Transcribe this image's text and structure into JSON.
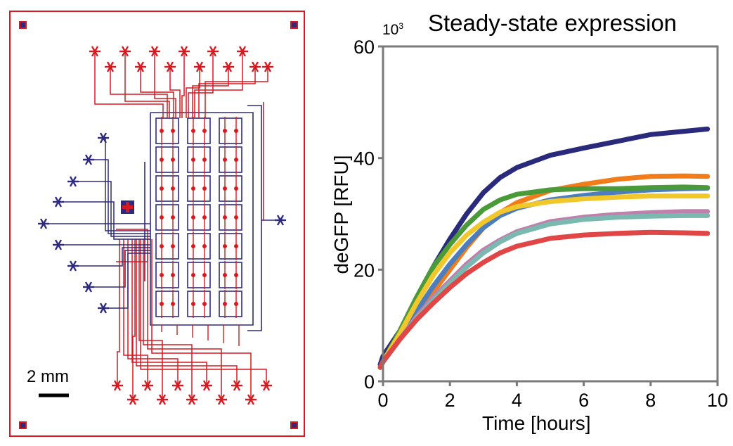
{
  "chip_figure": {
    "scale_bar_label": "2 mm",
    "colors": {
      "flow_layer": "#d71920",
      "control_layer": "#2e2a80"
    }
  },
  "chart_data": {
    "type": "line",
    "title": "Steady-state expression",
    "xlabel": "Time [hours]",
    "ylabel": "deGFP [RFU]",
    "y_multiplier": "10",
    "y_multiplier_exp": "3",
    "xlim": [
      0,
      10
    ],
    "ylim": [
      0,
      60
    ],
    "xticks": [
      0,
      2,
      4,
      6,
      8,
      10
    ],
    "yticks": [
      0,
      20,
      40,
      60
    ],
    "grid": false,
    "legend": "none",
    "series": [
      {
        "color": "#2a2a7c",
        "x": [
          -0.2,
          0,
          0.5,
          1,
          1.5,
          2,
          2.5,
          3,
          3.5,
          4,
          5,
          6,
          7,
          8,
          9,
          9.7
        ],
        "y": [
          3,
          4.5,
          9,
          15,
          20.5,
          25.5,
          30,
          33.8,
          36.5,
          38.3,
          40.5,
          41.8,
          43,
          44.2,
          44.8,
          45.2
        ]
      },
      {
        "color": "#f07d1a",
        "x": [
          -0.2,
          0,
          0.5,
          1,
          1.5,
          2,
          2.5,
          3,
          3.5,
          4,
          5,
          6,
          7,
          8,
          9,
          9.7
        ],
        "y": [
          2.5,
          3.5,
          7.5,
          11.5,
          16,
          20,
          24,
          27.5,
          30.2,
          32,
          34.2,
          35.3,
          36.2,
          36.7,
          36.8,
          36.7
        ]
      },
      {
        "color": "#4c7ebd",
        "x": [
          -0.2,
          0,
          0.5,
          1,
          1.5,
          2,
          2.5,
          3,
          3.5,
          4,
          5,
          6,
          7,
          8,
          9,
          9.7
        ],
        "y": [
          2.5,
          3.5,
          8,
          12.5,
          17,
          21,
          24.5,
          27.5,
          29.7,
          31,
          32.5,
          33.3,
          33.9,
          34.3,
          34.5,
          34.6
        ]
      },
      {
        "color": "#4a9a3a",
        "x": [
          -0.2,
          0,
          0.5,
          1,
          1.5,
          2,
          2.5,
          3,
          3.5,
          4,
          5,
          6,
          7,
          8,
          9,
          9.7
        ],
        "y": [
          2.5,
          3.5,
          9,
          15,
          20.5,
          24.5,
          28,
          30.8,
          32.5,
          33.5,
          34.3,
          34.5,
          34.5,
          34.7,
          34.8,
          34.7
        ]
      },
      {
        "color": "#f2c72a",
        "x": [
          -0.2,
          0,
          0.5,
          1,
          1.5,
          2,
          2.5,
          3,
          3.5,
          4,
          5,
          6,
          7,
          8,
          9,
          9.7
        ],
        "y": [
          2.5,
          3.5,
          8.5,
          14,
          19,
          23,
          26.2,
          28.5,
          30.3,
          31.3,
          32.2,
          32.7,
          33,
          33.2,
          33.2,
          33.2
        ]
      },
      {
        "color": "#c07fad",
        "x": [
          -0.2,
          0,
          0.5,
          1,
          1.5,
          2,
          2.5,
          3,
          3.5,
          4,
          5,
          6,
          7,
          8,
          9,
          9.7
        ],
        "y": [
          2.5,
          3.5,
          7.5,
          11.5,
          15,
          18,
          21,
          23.5,
          25.3,
          26.8,
          28.6,
          29.4,
          29.9,
          30.2,
          30.4,
          30.4
        ]
      },
      {
        "color": "#7ab9b0",
        "x": [
          -0.2,
          0,
          0.5,
          1,
          1.5,
          2,
          2.5,
          3,
          3.5,
          4,
          5,
          6,
          7,
          8,
          9,
          9.7
        ],
        "y": [
          2.5,
          3.5,
          7.5,
          11.2,
          14.5,
          17.5,
          20.5,
          23,
          25,
          26.5,
          28.2,
          29,
          29.4,
          29.6,
          29.7,
          29.7
        ]
      },
      {
        "color": "#e04646",
        "x": [
          -0.2,
          0,
          0.5,
          1,
          1.5,
          2,
          2.5,
          3,
          3.5,
          4,
          5,
          6,
          7,
          8,
          9,
          9.7
        ],
        "y": [
          2.5,
          3.5,
          7.5,
          11,
          14,
          16.8,
          19.3,
          21.3,
          23,
          24.2,
          25.6,
          26.2,
          26.5,
          26.7,
          26.6,
          26.5
        ]
      }
    ]
  }
}
